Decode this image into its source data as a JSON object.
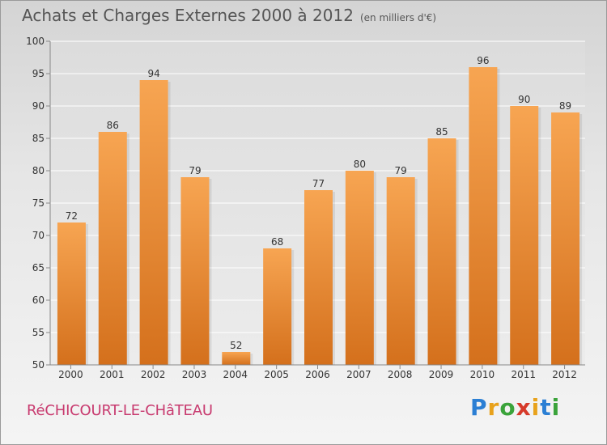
{
  "header": {
    "title": "Achats et Charges Externes 2000 à 2012",
    "unit": "(en milliers d'€)"
  },
  "footer": {
    "location": "RéCHICOURT-LE-CHâTEAU",
    "logo_letters": [
      {
        "ch": "P",
        "color": "#2b7fd4"
      },
      {
        "ch": "r",
        "color": "#e8a21c"
      },
      {
        "ch": "o",
        "color": "#3aa33a"
      },
      {
        "ch": "x",
        "color": "#d63a2a"
      },
      {
        "ch": "i",
        "color": "#e8a21c"
      },
      {
        "ch": "t",
        "color": "#2b7fd4"
      },
      {
        "ch": "i",
        "color": "#3aa33a"
      }
    ]
  },
  "chart_data": {
    "type": "bar",
    "categories": [
      "2000",
      "2001",
      "2002",
      "2003",
      "2004",
      "2005",
      "2006",
      "2007",
      "2008",
      "2009",
      "2010",
      "2011",
      "2012"
    ],
    "values": [
      72,
      86,
      94,
      79,
      52,
      68,
      77,
      80,
      79,
      85,
      96,
      90,
      89
    ],
    "title": "Achats et Charges Externes 2000 à 2012",
    "subtitle": "(en milliers d'€)",
    "xlabel": "",
    "ylabel": "",
    "ylim": [
      50,
      100
    ],
    "yticks": [
      50,
      55,
      60,
      65,
      70,
      75,
      80,
      85,
      90,
      95,
      100
    ],
    "grid": true,
    "bar_color_top": "#f7a552",
    "bar_color_bottom": "#d4701c"
  }
}
